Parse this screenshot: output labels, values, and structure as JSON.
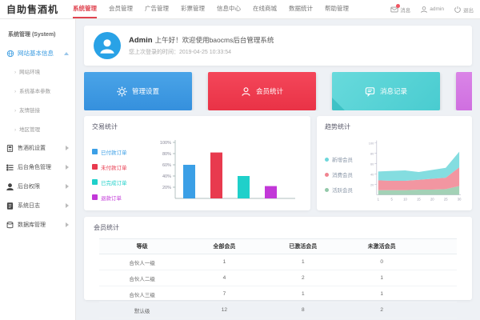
{
  "navbar": {
    "logo": "自助售酒机",
    "items": [
      {
        "label": "系统管理"
      },
      {
        "label": "会员管理"
      },
      {
        "label": "广告管理"
      },
      {
        "label": "彩票管理"
      },
      {
        "label": "信息中心"
      },
      {
        "label": "在线商城"
      },
      {
        "label": "数据统计"
      },
      {
        "label": "帮助管理"
      }
    ],
    "messages_label": "消息",
    "account_label": "admin",
    "logout_label": "退出"
  },
  "sidebar": {
    "header": "系统管理 (System)",
    "active_group": "网站基本信息",
    "sub_items": [
      {
        "label": "网站环境"
      },
      {
        "label": "系统基本参数"
      },
      {
        "label": "友情链接"
      },
      {
        "label": "地区管理"
      }
    ],
    "groups": [
      {
        "label": "售酒机设置"
      },
      {
        "label": "后台角色管理"
      },
      {
        "label": "后台权限"
      },
      {
        "label": "系统日志"
      },
      {
        "label": "数据库管理"
      }
    ]
  },
  "welcome": {
    "user": "Admin",
    "greeting": "上午好！欢迎使用baocms后台管理系统",
    "last_login": "您上次登录的时间：2019-04-25 10:33:54"
  },
  "actions": [
    {
      "label": "管理设置"
    },
    {
      "label": "会员统计"
    },
    {
      "label": "消息记录"
    },
    {
      "label": ""
    }
  ],
  "chart_data": [
    {
      "type": "bar",
      "title": "交易统计",
      "legend": [
        {
          "label": "已付款订单",
          "color": "#3b9fe6"
        },
        {
          "label": "未付款订单",
          "color": "#e83a4e"
        },
        {
          "label": "已完成订单",
          "color": "#1fd0ca"
        },
        {
          "label": "退款订单",
          "color": "#c238d8"
        }
      ],
      "categories": [
        "已付款订单",
        "未付款订单",
        "已完成订单",
        "退款订单"
      ],
      "values": [
        60,
        82,
        40,
        22
      ],
      "yticks": [
        {
          "label": "100%",
          "value": 100
        },
        {
          "label": "80%",
          "value": 80
        },
        {
          "label": "60%",
          "value": 60
        },
        {
          "label": "40%",
          "value": 40
        },
        {
          "label": "20%",
          "value": 20
        }
      ],
      "ylim": [
        0,
        100
      ],
      "legend_position": "left",
      "grid": false
    },
    {
      "type": "area",
      "title": "趋势统计",
      "legend": [
        {
          "label": "新增会员",
          "color": "#6ed7db"
        },
        {
          "label": "消费会员",
          "color": "#f08490"
        },
        {
          "label": "活跃会员",
          "color": "#93c9a9"
        }
      ],
      "x": [
        "1",
        "5",
        "10",
        "15",
        "20",
        "25",
        "30"
      ],
      "series": [
        {
          "name": "活跃会员",
          "color": "#93c9a9",
          "values": [
            9,
            9,
            9,
            10,
            10,
            11,
            17
          ]
        },
        {
          "name": "消费会员",
          "color": "#f08490",
          "values": [
            19,
            18,
            18,
            19,
            21,
            22,
            36
          ]
        },
        {
          "name": "新增会员",
          "color": "#6ed7db",
          "values": [
            17,
            19,
            20,
            15,
            17,
            19,
            30
          ]
        }
      ],
      "ylim": [
        0,
        100
      ],
      "legend_position": "left",
      "grid": false
    }
  ],
  "member_stats": {
    "title": "会员统计",
    "columns": [
      "等级",
      "全部会员",
      "已激活会员",
      "未激活会员",
      ""
    ],
    "rows": [
      [
        "合伙人一级",
        "1",
        "1",
        "0"
      ],
      [
        "合伙人二级",
        "4",
        "2",
        "1"
      ],
      [
        "合伙人三级",
        "7",
        "1",
        "1"
      ],
      [
        "默认级",
        "12",
        "8",
        "2"
      ]
    ]
  }
}
